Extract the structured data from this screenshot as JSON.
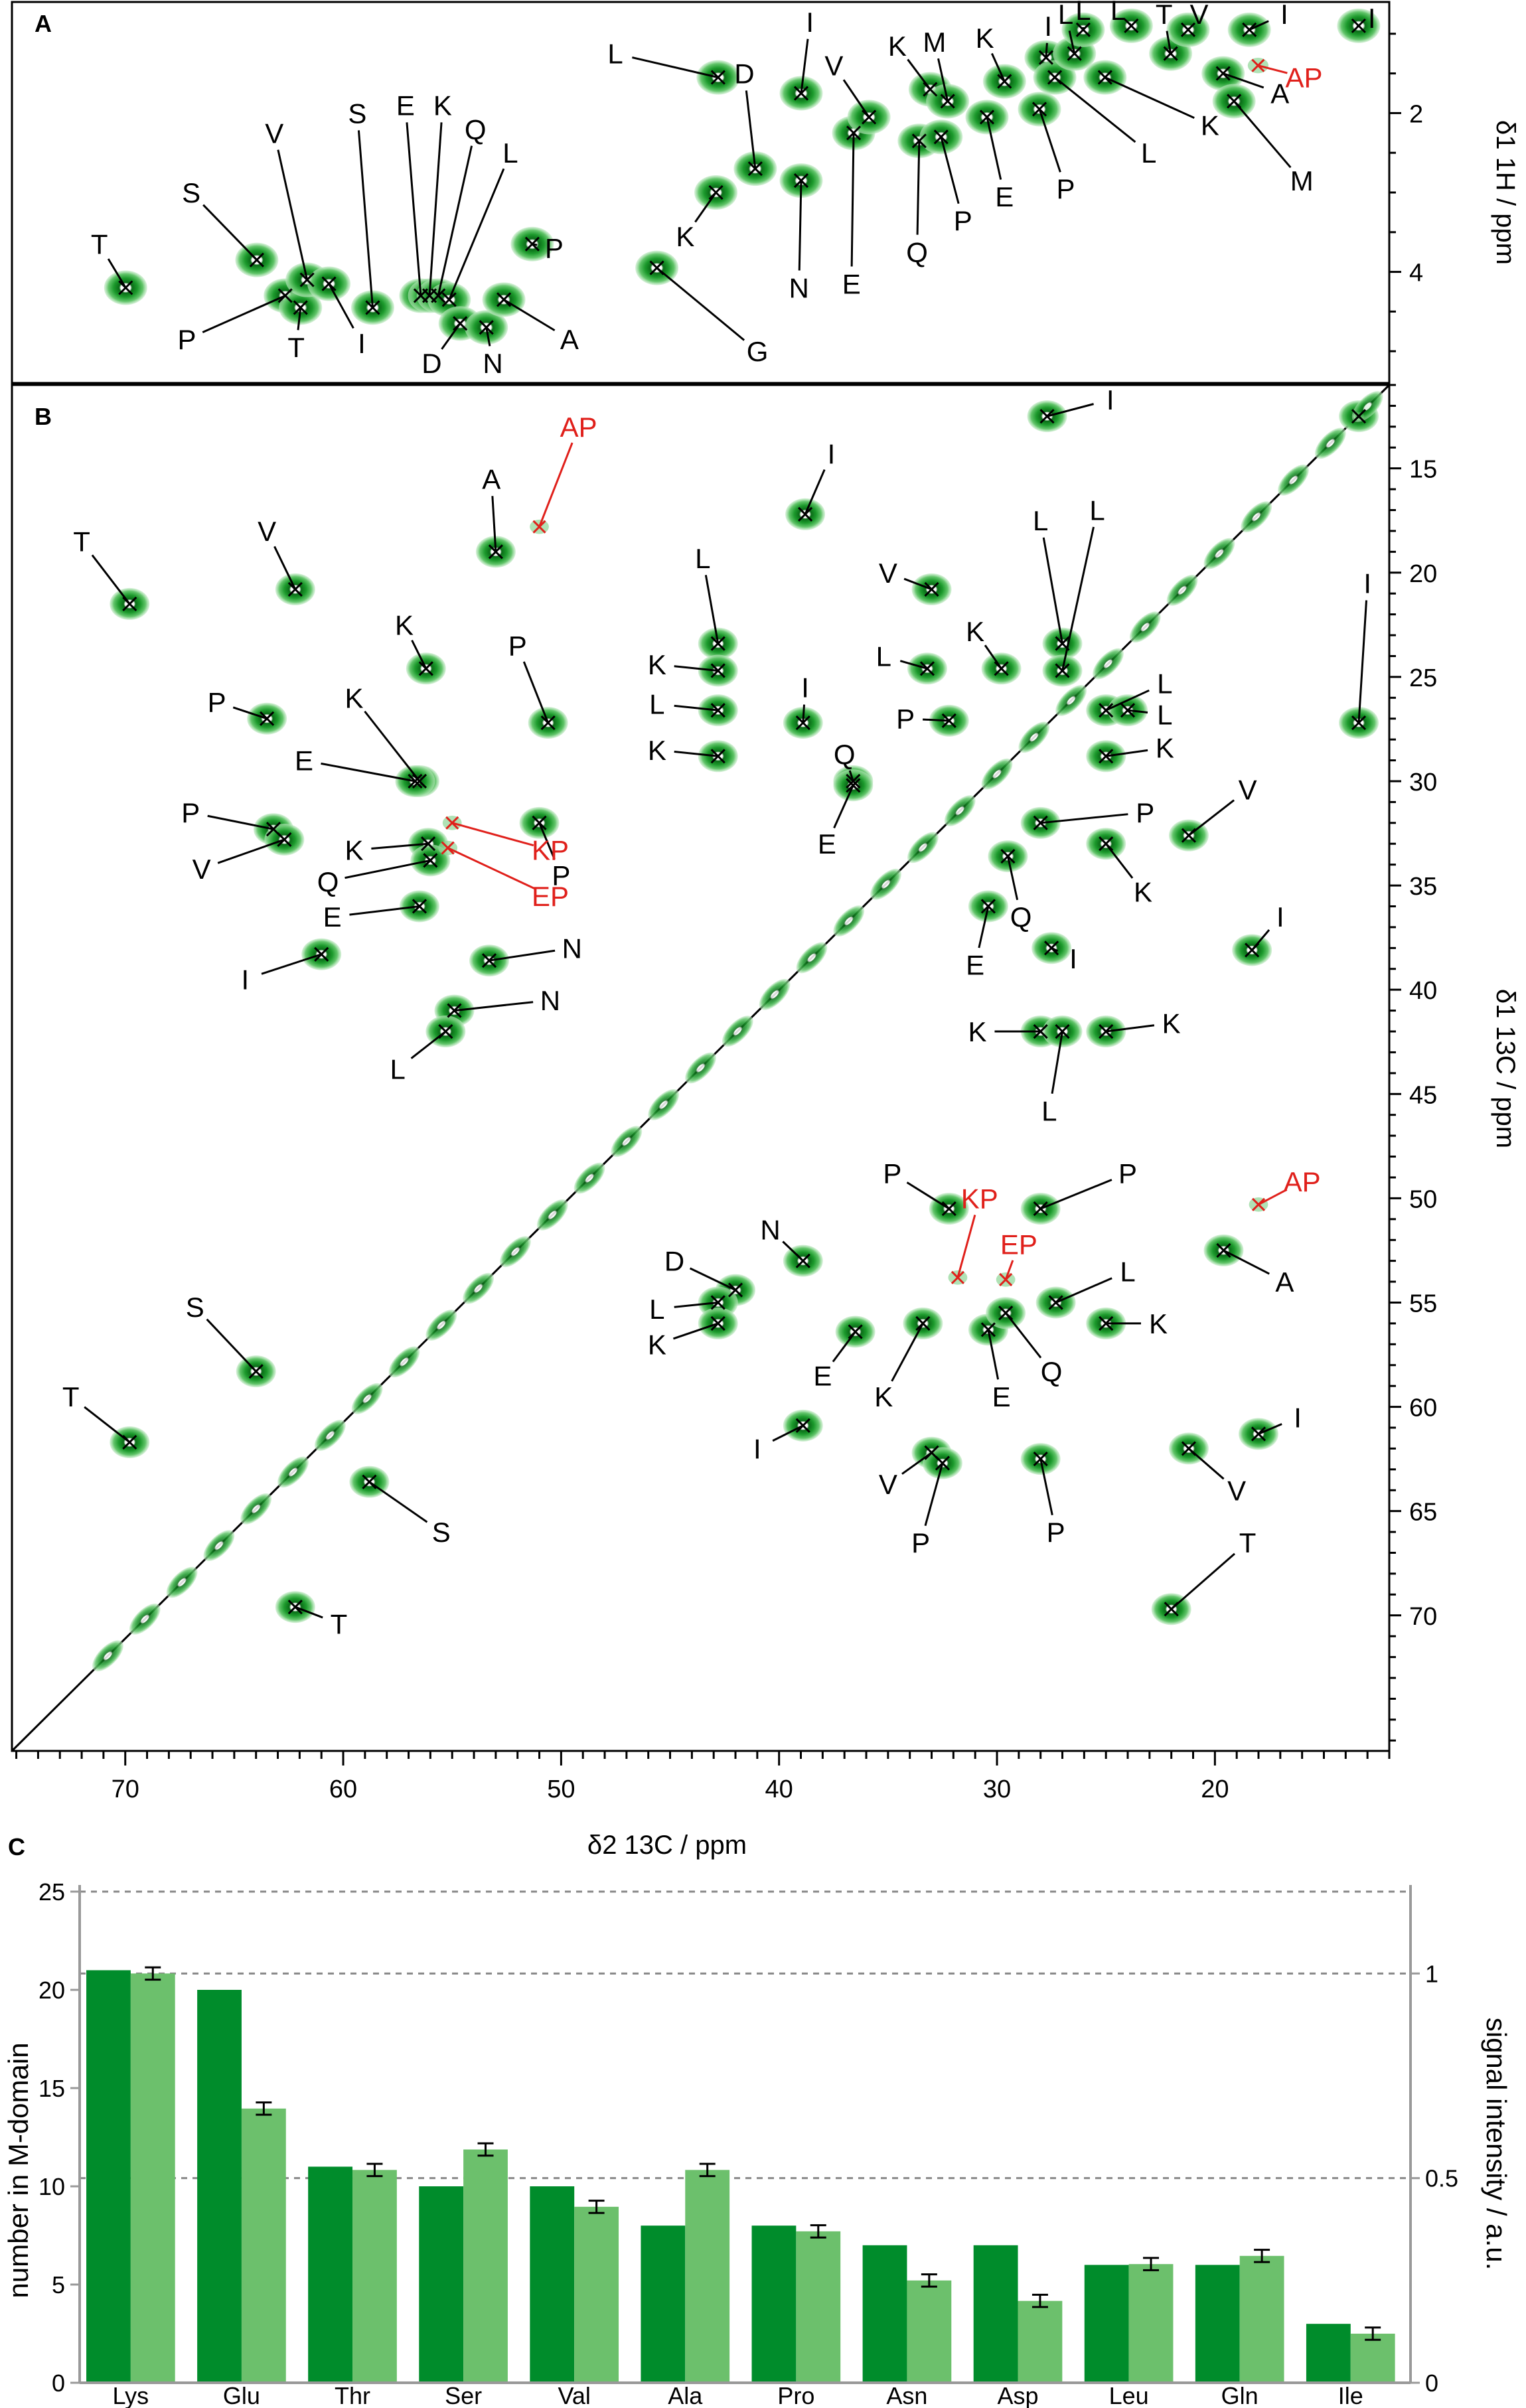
{
  "panels": {
    "a": "A",
    "b": "B",
    "c": "C"
  },
  "axes": {
    "a_y_label": "δ1 1H / ppm",
    "b_y_label": "δ1 13C / ppm",
    "b_x_label": "δ2 13C / ppm",
    "c_y_left": "number in M-domain",
    "c_y_right": "signal intensity / a.u."
  },
  "colors": {
    "spectrum_green": "#11a52a",
    "spectrum_dark": "#0a6b17",
    "marker_red": "#e0201b",
    "bar_dark": "#008c2b",
    "bar_light": "#6cc06c"
  },
  "panel_a": {
    "x_range": [
      75,
      12
    ],
    "y_range": [
      0.6,
      5.4
    ],
    "y_ticks": [
      2,
      4
    ],
    "peaks": [
      {
        "x": 69.8,
        "y": 4.2,
        "label": "T",
        "lx": 71.0,
        "ly": 3.65
      },
      {
        "x": 63.8,
        "y": 3.85,
        "label": "S",
        "lx": 66.8,
        "ly": 3.0
      },
      {
        "x": 62.5,
        "y": 4.3,
        "label": "P",
        "lx": 67.0,
        "ly": 4.85
      },
      {
        "x": 61.8,
        "y": 4.45,
        "label": "T",
        "lx": 62.0,
        "ly": 4.95
      },
      {
        "x": 61.5,
        "y": 4.1,
        "label": "V",
        "lx": 63.0,
        "ly": 2.25
      },
      {
        "x": 60.5,
        "y": 4.15,
        "label": "I",
        "lx": 59.0,
        "ly": 4.9
      },
      {
        "x": 58.5,
        "y": 4.45,
        "label": "S",
        "lx": 59.2,
        "ly": 2.0
      },
      {
        "x": 56.3,
        "y": 4.3,
        "label": "E",
        "lx": 57.0,
        "ly": 1.9
      },
      {
        "x": 55.9,
        "y": 4.3,
        "label": "K",
        "lx": 55.3,
        "ly": 1.9
      },
      {
        "x": 55.5,
        "y": 4.3,
        "label": "Q",
        "lx": 53.8,
        "ly": 2.2
      },
      {
        "x": 55.0,
        "y": 4.35,
        "label": "L",
        "lx": 52.2,
        "ly": 2.5
      },
      {
        "x": 54.5,
        "y": 4.65,
        "label": "D",
        "lx": 55.8,
        "ly": 5.15
      },
      {
        "x": 53.3,
        "y": 4.7,
        "label": "N",
        "lx": 53.0,
        "ly": 5.15
      },
      {
        "x": 52.5,
        "y": 4.35,
        "label": "A",
        "lx": 49.5,
        "ly": 4.85
      },
      {
        "x": 51.2,
        "y": 3.65,
        "label": "P",
        "lx": 50.2,
        "ly": 3.7
      },
      {
        "x": 42.7,
        "y": 1.55,
        "label": "L",
        "lx": 47.4,
        "ly": 1.25
      },
      {
        "x": 41.0,
        "y": 2.7,
        "label": "D",
        "lx": 41.5,
        "ly": 1.5
      },
      {
        "x": 42.8,
        "y": 3.0,
        "label": "K",
        "lx": 44.2,
        "ly": 3.55
      },
      {
        "x": 45.5,
        "y": 3.95,
        "label": "G",
        "lx": 40.9,
        "ly": 5.0
      },
      {
        "x": 38.9,
        "y": 1.75,
        "label": "I",
        "lx": 38.5,
        "ly": 0.85
      },
      {
        "x": 38.9,
        "y": 2.85,
        "label": "N",
        "lx": 39.0,
        "ly": 4.2
      },
      {
        "x": 36.5,
        "y": 2.25,
        "label": "E",
        "lx": 36.6,
        "ly": 4.15
      },
      {
        "x": 35.8,
        "y": 2.05,
        "label": "V",
        "lx": 37.4,
        "ly": 1.4
      },
      {
        "x": 33.5,
        "y": 2.35,
        "label": "Q",
        "lx": 33.6,
        "ly": 3.75
      },
      {
        "x": 33.0,
        "y": 1.7,
        "label": "K",
        "lx": 34.5,
        "ly": 1.15
      },
      {
        "x": 32.5,
        "y": 2.3,
        "label": "P",
        "lx": 31.5,
        "ly": 3.35
      },
      {
        "x": 32.2,
        "y": 1.85,
        "label": "M",
        "lx": 32.8,
        "ly": 1.1
      },
      {
        "x": 30.4,
        "y": 2.05,
        "label": "E",
        "lx": 29.6,
        "ly": 3.05
      },
      {
        "x": 29.6,
        "y": 1.6,
        "label": "K",
        "lx": 30.5,
        "ly": 1.05
      },
      {
        "x": 28.0,
        "y": 1.95,
        "label": "P",
        "lx": 26.8,
        "ly": 2.95
      },
      {
        "x": 27.7,
        "y": 1.3,
        "label": "I",
        "lx": 27.6,
        "ly": 0.9
      },
      {
        "x": 27.3,
        "y": 1.55,
        "label": "L",
        "lx": 23.0,
        "ly": 2.5
      },
      {
        "x": 26.4,
        "y": 1.25,
        "label": "L",
        "lx": 26.8,
        "ly": 0.75
      },
      {
        "x": 25.0,
        "y": 1.55,
        "label": "K",
        "lx": 20.2,
        "ly": 2.15
      },
      {
        "x": 26.0,
        "y": 0.95,
        "label": "L",
        "lx": 26.0,
        "ly": 0.7
      },
      {
        "x": 23.8,
        "y": 0.9,
        "label": "L",
        "lx": 24.4,
        "ly": 0.7
      },
      {
        "x": 22.0,
        "y": 1.25,
        "label": "T",
        "lx": 22.3,
        "ly": 0.75
      },
      {
        "x": 21.2,
        "y": 0.95,
        "label": "V",
        "lx": 20.7,
        "ly": 0.75
      },
      {
        "x": 19.6,
        "y": 1.5,
        "label": "A",
        "lx": 17.0,
        "ly": 1.75
      },
      {
        "x": 19.1,
        "y": 1.85,
        "label": "M",
        "lx": 16.0,
        "ly": 2.85
      },
      {
        "x": 18.4,
        "y": 0.95,
        "label": "I",
        "lx": 16.8,
        "ly": 0.75
      },
      {
        "x": 13.4,
        "y": 0.9,
        "label": "I",
        "lx": 12.8,
        "ly": 0.8
      }
    ],
    "red_peaks": [
      {
        "x": 18.0,
        "y": 1.4,
        "label": "AP",
        "lx": 15.9,
        "ly": 1.55
      }
    ]
  },
  "panel_b": {
    "x_range": [
      75.2,
      12.0
    ],
    "y_range": [
      11.0,
      76.5
    ],
    "y_ticks": [
      15,
      20,
      25,
      30,
      35,
      40,
      45,
      50,
      55,
      60,
      65,
      70
    ],
    "x_ticks": [
      70,
      60,
      50,
      40,
      30,
      20
    ],
    "peaks": [
      {
        "x": 69.8,
        "y": 21.5,
        "label": "T",
        "lx": 72.0,
        "ly": 18.5
      },
      {
        "x": 62.2,
        "y": 20.8,
        "label": "V",
        "lx": 63.5,
        "ly": 18.0
      },
      {
        "x": 53.0,
        "y": 19.0,
        "label": "A",
        "lx": 53.2,
        "ly": 15.5
      },
      {
        "x": 56.2,
        "y": 24.6,
        "label": "K",
        "lx": 57.2,
        "ly": 22.5
      },
      {
        "x": 50.6,
        "y": 27.2,
        "label": "P",
        "lx": 52.0,
        "ly": 23.5
      },
      {
        "x": 63.5,
        "y": 27.0,
        "label": "P",
        "lx": 65.8,
        "ly": 26.2
      },
      {
        "x": 56.5,
        "y": 30.0,
        "label": "K",
        "lx": 59.5,
        "ly": 26.0
      },
      {
        "x": 56.7,
        "y": 30.0,
        "label": "E",
        "lx": 61.8,
        "ly": 29.0
      },
      {
        "x": 63.2,
        "y": 32.3,
        "label": "P",
        "lx": 67.0,
        "ly": 31.5
      },
      {
        "x": 62.7,
        "y": 32.8,
        "label": "V",
        "lx": 66.5,
        "ly": 34.2
      },
      {
        "x": 51.0,
        "y": 32.0,
        "label": "P",
        "lx": 50.0,
        "ly": 34.5
      },
      {
        "x": 56.1,
        "y": 33.0,
        "label": "K",
        "lx": 59.5,
        "ly": 33.3
      },
      {
        "x": 56.0,
        "y": 33.8,
        "label": "Q",
        "lx": 60.7,
        "ly": 34.8
      },
      {
        "x": 56.5,
        "y": 36.0,
        "label": "E",
        "lx": 60.5,
        "ly": 36.5
      },
      {
        "x": 61.0,
        "y": 38.3,
        "label": "I",
        "lx": 64.5,
        "ly": 39.5
      },
      {
        "x": 53.3,
        "y": 38.6,
        "label": "N",
        "lx": 49.5,
        "ly": 38.0
      },
      {
        "x": 54.9,
        "y": 41.0,
        "label": "N",
        "lx": 50.5,
        "ly": 40.5
      },
      {
        "x": 55.3,
        "y": 42.0,
        "label": "L",
        "lx": 57.5,
        "ly": 43.8
      },
      {
        "x": 42.8,
        "y": 23.4,
        "label": "L",
        "lx": 43.5,
        "ly": 19.3
      },
      {
        "x": 42.8,
        "y": 24.7,
        "label": "K",
        "lx": 45.6,
        "ly": 24.4
      },
      {
        "x": 42.8,
        "y": 26.6,
        "label": "L",
        "lx": 45.6,
        "ly": 26.3
      },
      {
        "x": 42.8,
        "y": 28.8,
        "label": "K",
        "lx": 45.6,
        "ly": 28.5
      },
      {
        "x": 38.9,
        "y": 27.2,
        "label": "I",
        "lx": 38.8,
        "ly": 25.5
      },
      {
        "x": 38.8,
        "y": 17.2,
        "label": "I",
        "lx": 37.6,
        "ly": 14.3
      },
      {
        "x": 33.0,
        "y": 20.8,
        "label": "V",
        "lx": 35.0,
        "ly": 20.0
      },
      {
        "x": 33.2,
        "y": 24.6,
        "label": "L",
        "lx": 35.2,
        "ly": 24.0
      },
      {
        "x": 32.2,
        "y": 27.1,
        "label": "P",
        "lx": 34.2,
        "ly": 27.0
      },
      {
        "x": 36.6,
        "y": 30.0,
        "label": "Q",
        "lx": 37.0,
        "ly": 28.7
      },
      {
        "x": 36.6,
        "y": 30.2,
        "label": "E",
        "lx": 37.8,
        "ly": 33.0
      },
      {
        "x": 29.8,
        "y": 24.6,
        "label": "K",
        "lx": 31.0,
        "ly": 22.8
      },
      {
        "x": 27.0,
        "y": 23.4,
        "label": "L",
        "lx": 28.0,
        "ly": 17.5
      },
      {
        "x": 27.0,
        "y": 24.7,
        "label": "L",
        "lx": 25.4,
        "ly": 17.0
      },
      {
        "x": 25.0,
        "y": 26.6,
        "label": "L",
        "lx": 22.3,
        "ly": 25.3
      },
      {
        "x": 24.0,
        "y": 26.6,
        "label": "L",
        "lx": 22.3,
        "ly": 26.8
      },
      {
        "x": 25.0,
        "y": 28.8,
        "label": "K",
        "lx": 22.3,
        "ly": 28.4
      },
      {
        "x": 28.0,
        "y": 32.0,
        "label": "P",
        "lx": 23.2,
        "ly": 31.5
      },
      {
        "x": 25.0,
        "y": 33.0,
        "label": "K",
        "lx": 23.3,
        "ly": 35.3
      },
      {
        "x": 29.5,
        "y": 33.6,
        "label": "Q",
        "lx": 28.9,
        "ly": 36.5
      },
      {
        "x": 30.4,
        "y": 36.0,
        "label": "E",
        "lx": 31.0,
        "ly": 38.8
      },
      {
        "x": 27.5,
        "y": 38.0,
        "label": "I",
        "lx": 26.5,
        "ly": 38.5
      },
      {
        "x": 21.2,
        "y": 32.6,
        "label": "V",
        "lx": 18.5,
        "ly": 30.4
      },
      {
        "x": 18.3,
        "y": 38.1,
        "label": "I",
        "lx": 17.0,
        "ly": 36.5
      },
      {
        "x": 28.0,
        "y": 42.0,
        "label": "K",
        "lx": 30.9,
        "ly": 42.0
      },
      {
        "x": 27.0,
        "y": 42.0,
        "label": "L",
        "lx": 27.6,
        "ly": 45.8
      },
      {
        "x": 25.0,
        "y": 42.0,
        "label": "K",
        "lx": 22.0,
        "ly": 41.6
      },
      {
        "x": 32.2,
        "y": 50.5,
        "label": "P",
        "lx": 34.8,
        "ly": 48.8
      },
      {
        "x": 28.0,
        "y": 50.5,
        "label": "P",
        "lx": 24.0,
        "ly": 48.8
      },
      {
        "x": 38.9,
        "y": 53.0,
        "label": "N",
        "lx": 40.4,
        "ly": 51.5
      },
      {
        "x": 42.0,
        "y": 54.4,
        "label": "D",
        "lx": 44.8,
        "ly": 53.0
      },
      {
        "x": 42.8,
        "y": 55.0,
        "label": "L",
        "lx": 45.6,
        "ly": 55.3
      },
      {
        "x": 42.8,
        "y": 56.0,
        "label": "K",
        "lx": 45.6,
        "ly": 57.0
      },
      {
        "x": 36.5,
        "y": 56.4,
        "label": "E",
        "lx": 38.0,
        "ly": 58.5
      },
      {
        "x": 33.4,
        "y": 56.0,
        "label": "K",
        "lx": 35.2,
        "ly": 59.5
      },
      {
        "x": 30.4,
        "y": 56.3,
        "label": "E",
        "lx": 29.8,
        "ly": 59.5
      },
      {
        "x": 29.6,
        "y": 55.5,
        "label": "Q",
        "lx": 27.5,
        "ly": 58.3
      },
      {
        "x": 27.3,
        "y": 55.0,
        "label": "L",
        "lx": 24.0,
        "ly": 53.5
      },
      {
        "x": 25.0,
        "y": 56.0,
        "label": "K",
        "lx": 22.6,
        "ly": 56.0
      },
      {
        "x": 19.6,
        "y": 52.5,
        "label": "A",
        "lx": 16.8,
        "ly": 54.0
      },
      {
        "x": 18.0,
        "y": 61.3,
        "label": "I",
        "lx": 16.2,
        "ly": 60.5
      },
      {
        "x": 21.2,
        "y": 62.0,
        "label": "V",
        "lx": 19.0,
        "ly": 64.0
      },
      {
        "x": 22.0,
        "y": 69.7,
        "label": "T",
        "lx": 18.5,
        "ly": 66.5
      },
      {
        "x": 33.0,
        "y": 62.2,
        "label": "V",
        "lx": 35.0,
        "ly": 63.7
      },
      {
        "x": 32.5,
        "y": 62.7,
        "label": "P",
        "lx": 33.5,
        "ly": 66.5
      },
      {
        "x": 28.0,
        "y": 62.5,
        "label": "P",
        "lx": 27.3,
        "ly": 66.0
      },
      {
        "x": 38.9,
        "y": 60.9,
        "label": "I",
        "lx": 41.0,
        "ly": 62.0
      },
      {
        "x": 64.0,
        "y": 58.3,
        "label": "S",
        "lx": 66.8,
        "ly": 55.2
      },
      {
        "x": 69.8,
        "y": 61.7,
        "label": "T",
        "lx": 72.5,
        "ly": 59.5
      },
      {
        "x": 58.8,
        "y": 63.6,
        "label": "S",
        "lx": 55.5,
        "ly": 66.0
      },
      {
        "x": 62.2,
        "y": 69.6,
        "label": "T",
        "lx": 60.2,
        "ly": 70.4
      },
      {
        "x": 13.4,
        "y": 12.5,
        "label": "",
        "lx": 0,
        "ly": 0
      },
      {
        "x": 27.7,
        "y": 12.5,
        "label": "I",
        "lx": 24.8,
        "ly": 11.7
      },
      {
        "x": 13.4,
        "y": 27.2,
        "label": "I",
        "lx": 13.0,
        "ly": 20.5
      }
    ],
    "red_peaks": [
      {
        "x": 51.0,
        "y": 17.8,
        "label": "AP",
        "lx": 49.2,
        "ly": 13.0
      },
      {
        "x": 55.0,
        "y": 32.0,
        "label": "KP",
        "lx": 50.5,
        "ly": 33.3
      },
      {
        "x": 55.2,
        "y": 33.2,
        "label": "EP",
        "lx": 50.5,
        "ly": 35.5
      },
      {
        "x": 31.8,
        "y": 53.8,
        "label": "KP",
        "lx": 30.8,
        "ly": 50.0
      },
      {
        "x": 29.6,
        "y": 53.9,
        "label": "EP",
        "lx": 29.0,
        "ly": 52.2
      },
      {
        "x": 18.0,
        "y": 50.3,
        "label": "AP",
        "lx": 16.0,
        "ly": 49.2
      }
    ]
  },
  "chart_data": {
    "type": "bar",
    "categories": [
      "Lys",
      "Glu",
      "Thr",
      "Ser",
      "Val",
      "Ala",
      "Pro",
      "Asn",
      "Asp",
      "Leu",
      "Gln",
      "Ile"
    ],
    "series": [
      {
        "values": [
          21,
          20,
          11,
          10,
          10,
          8,
          8,
          7,
          7,
          6,
          6,
          3
        ]
      },
      {
        "values": [
          1.0,
          0.67,
          0.52,
          0.57,
          0.43,
          0.52,
          0.37,
          0.25,
          0.2,
          0.29,
          0.31,
          0.12
        ]
      }
    ],
    "error": [
      0.015,
      0.015,
      0.015,
      0.015,
      0.015,
      0.015,
      0.015,
      0.015,
      0.015,
      0.015,
      0.015,
      0.015
    ],
    "ylim_left": [
      0,
      25
    ],
    "ylim_right": [
      0,
      1.2
    ],
    "yticks_left": [
      0,
      5,
      10,
      15,
      20,
      25
    ],
    "yticks_right": [
      0,
      0.5,
      1
    ],
    "gridlines_right": [
      0.5,
      1,
      1.2
    ]
  }
}
